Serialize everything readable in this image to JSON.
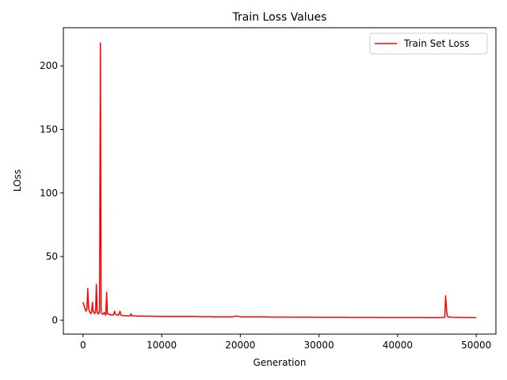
{
  "chart_data": {
    "type": "line",
    "title": "Train Loss Values",
    "xlabel": "Generation",
    "ylabel": "LOss",
    "xlim": [
      -2500,
      52500
    ],
    "ylim": [
      -11,
      230
    ],
    "xticks": [
      0,
      10000,
      20000,
      30000,
      40000,
      50000
    ],
    "yticks": [
      0,
      50,
      100,
      150,
      200
    ],
    "grid": false,
    "legend_position": "top-right",
    "series": [
      {
        "name": "Train Set Loss",
        "color": "#ff0000",
        "x": [
          0,
          100,
          200,
          300,
          400,
          500,
          600,
          700,
          800,
          900,
          1000,
          1100,
          1200,
          1300,
          1400,
          1500,
          1600,
          1700,
          1800,
          1900,
          2000,
          2100,
          2200,
          2300,
          2400,
          2500,
          2600,
          2700,
          2800,
          2900,
          3000,
          3100,
          3300,
          3500,
          3700,
          3900,
          4000,
          4100,
          4300,
          4500,
          4700,
          4800,
          4900,
          5100,
          5500,
          6000,
          6100,
          6200,
          6500,
          7000,
          8000,
          9000,
          10000,
          11000,
          12000,
          13000,
          14000,
          15000,
          16000,
          17000,
          18000,
          19000,
          19500,
          20000,
          21000,
          22000,
          23000,
          24000,
          25000,
          26000,
          27000,
          28000,
          29000,
          30000,
          31000,
          32000,
          33000,
          34000,
          35000,
          36000,
          37000,
          38000,
          39000,
          40000,
          41000,
          42000,
          43000,
          44000,
          45000,
          45500,
          46000,
          46100,
          46200,
          46300,
          46400,
          47000,
          48000,
          49000,
          50000
        ],
        "y": [
          14,
          12,
          10,
          8,
          7,
          9,
          25,
          10,
          7,
          6,
          5,
          6,
          14,
          7,
          6,
          5,
          7,
          28,
          6,
          5,
          5,
          8,
          218,
          6,
          5,
          4.5,
          5,
          6,
          4.5,
          4,
          22,
          5,
          4.5,
          4,
          4,
          4,
          7,
          5,
          4,
          3.8,
          7,
          4,
          3.8,
          3.6,
          3.4,
          3.4,
          5,
          3.4,
          3.3,
          3.2,
          3.1,
          3.0,
          2.9,
          2.9,
          2.8,
          2.8,
          2.8,
          2.7,
          2.7,
          2.6,
          2.6,
          2.6,
          3.2,
          2.6,
          2.5,
          2.5,
          2.5,
          2.4,
          2.4,
          2.4,
          2.3,
          2.3,
          2.3,
          2.2,
          2.2,
          2.2,
          2.2,
          2.1,
          2.1,
          2.1,
          2.1,
          2.0,
          2.0,
          2.0,
          2.0,
          2.0,
          2.0,
          1.9,
          1.9,
          1.9,
          2.2,
          19,
          10,
          3.5,
          2.5,
          2.2,
          2.1,
          2.0,
          2.0
        ]
      }
    ]
  }
}
